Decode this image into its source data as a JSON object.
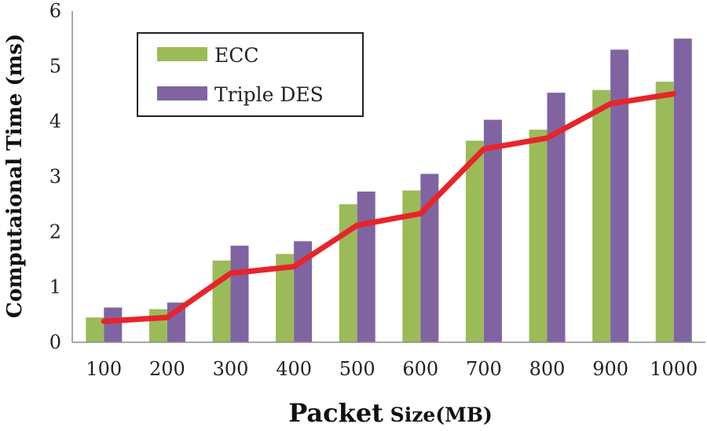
{
  "chart_data": {
    "type": "bar",
    "title": "",
    "xlabel_main": "Packet",
    "xlabel_suffix": " Size(MB)",
    "ylabel": "Computaional Time (ms)",
    "categories": [
      "100",
      "200",
      "300",
      "400",
      "500",
      "600",
      "700",
      "800",
      "900",
      "1000"
    ],
    "ylim": [
      0,
      6
    ],
    "yticks": [
      "0",
      "1",
      "2",
      "3",
      "4",
      "5",
      "6"
    ],
    "grid": false,
    "legend_position": "top-left",
    "series": [
      {
        "name": "ECC",
        "type": "bar",
        "color": "#9bbb59",
        "values": [
          0.45,
          0.6,
          1.48,
          1.6,
          2.5,
          2.75,
          3.65,
          3.85,
          4.57,
          4.72
        ]
      },
      {
        "name": "Triple DES",
        "type": "bar",
        "color": "#8064a2",
        "values": [
          0.63,
          0.72,
          1.75,
          1.83,
          2.73,
          3.05,
          4.03,
          4.52,
          5.3,
          5.5
        ]
      },
      {
        "name": "",
        "type": "line",
        "color": "#e8242a",
        "values": [
          0.38,
          0.45,
          1.25,
          1.37,
          2.12,
          2.33,
          3.5,
          3.7,
          4.32,
          4.5
        ]
      }
    ]
  }
}
